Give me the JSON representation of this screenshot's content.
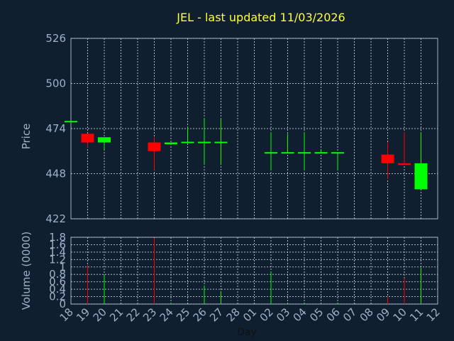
{
  "chart_data": [
    {
      "type": "candlestick",
      "title": "JEL - last updated 11/03/2026",
      "ylabel": "Price",
      "ylim": [
        422,
        526
      ],
      "yticks": [
        526,
        500,
        474,
        448,
        422
      ],
      "grid": true,
      "up_color": "#00ff00",
      "down_color": "#ff0000",
      "candles": [
        {
          "x": "18",
          "open": 478,
          "close": 478,
          "high": 478,
          "low": 478,
          "dir": "up"
        },
        {
          "x": "19",
          "open": 471,
          "close": 466,
          "high": 471,
          "low": 463,
          "dir": "down"
        },
        {
          "x": "20",
          "open": 466,
          "close": 469,
          "high": 469,
          "low": 462,
          "dir": "up"
        },
        {
          "x": "23",
          "open": 466,
          "close": 461,
          "high": 469,
          "low": 450,
          "dir": "down"
        },
        {
          "x": "24",
          "open": 465,
          "close": 466,
          "high": 466,
          "low": 465,
          "dir": "up"
        },
        {
          "x": "25",
          "open": 466,
          "close": 466,
          "high": 475,
          "low": 466,
          "dir": "up"
        },
        {
          "x": "26",
          "open": 466,
          "close": 466,
          "high": 480,
          "low": 453,
          "dir": "up"
        },
        {
          "x": "27",
          "open": 466,
          "close": 466,
          "high": 480,
          "low": 453,
          "dir": "up"
        },
        {
          "x": "02",
          "open": 460,
          "close": 460,
          "high": 472,
          "low": 450,
          "dir": "up"
        },
        {
          "x": "03",
          "open": 460,
          "close": 460,
          "high": 471,
          "low": 460,
          "dir": "up"
        },
        {
          "x": "04",
          "open": 460,
          "close": 460,
          "high": 472,
          "low": 450,
          "dir": "up"
        },
        {
          "x": "05",
          "open": 460,
          "close": 460,
          "high": 462,
          "low": 460,
          "dir": "up"
        },
        {
          "x": "06",
          "open": 460,
          "close": 460,
          "high": 460,
          "low": 450,
          "dir": "up"
        },
        {
          "x": "09",
          "open": 459,
          "close": 454,
          "high": 466,
          "low": 445,
          "dir": "down"
        },
        {
          "x": "10",
          "open": 454,
          "close": 453,
          "high": 472,
          "low": 453,
          "dir": "down"
        },
        {
          "x": "11",
          "open": 439,
          "close": 454,
          "high": 472,
          "low": 439,
          "dir": "up"
        }
      ]
    },
    {
      "type": "bar",
      "ylabel": "Volume (0000)",
      "xlabel": "Day",
      "ylim": [
        0,
        1.8
      ],
      "yticks": [
        "1.8",
        "1.6",
        "1.4",
        "1.2",
        "1",
        "0.8",
        "0.6",
        "0.4",
        "0.2",
        "0"
      ],
      "categories": [
        "18",
        "19",
        "20",
        "21",
        "22",
        "23",
        "24",
        "25",
        "26",
        "27",
        "28",
        "01",
        "02",
        "03",
        "04",
        "05",
        "06",
        "07",
        "08",
        "09",
        "10",
        "11",
        "12"
      ],
      "values": [
        0,
        1.05,
        0.78,
        0,
        0,
        1.78,
        0.04,
        0,
        0.5,
        0.35,
        0,
        0,
        0.88,
        0.02,
        0.02,
        0.01,
        0.02,
        0,
        0,
        0.2,
        0.7,
        0.98,
        0
      ],
      "bar_colors": [
        "#00ff00",
        "#ff0000",
        "#00ff00",
        "#00ff00",
        "#00ff00",
        "#ff0000",
        "#00ff00",
        "#00ff00",
        "#00ff00",
        "#00ff00",
        "#00ff00",
        "#00ff00",
        "#00ff00",
        "#00ff00",
        "#00ff00",
        "#00ff00",
        "#00ff00",
        "#00ff00",
        "#00ff00",
        "#ff0000",
        "#ff0000",
        "#00ff00",
        "#00ff00"
      ]
    }
  ]
}
